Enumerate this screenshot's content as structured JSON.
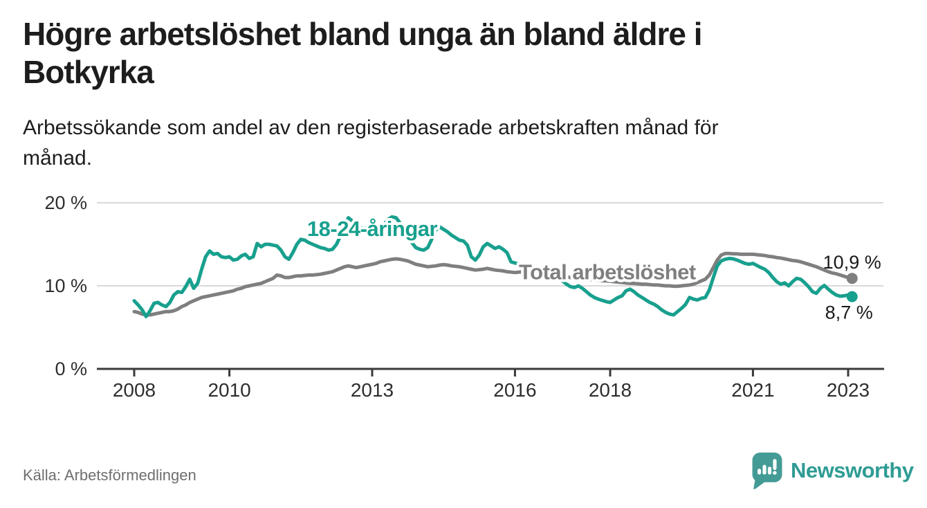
{
  "header": {
    "title_line1": "Högre arbetslöshet bland unga än bland äldre i",
    "title_line2": "Botkyrka",
    "subtitle_line1": "Arbetssökande som andel av den registerbaserade arbetskraften månad för",
    "subtitle_line2": "månad."
  },
  "footer": {
    "source": "Källa: Arbetsförmedlingen",
    "brand_name": "Newsworthy"
  },
  "colors": {
    "youth": "#18a08e",
    "total": "#7f7f7f",
    "grid": "#d9d9d9",
    "axis": "#3a3a3a",
    "axis_text": "#2e2e2e",
    "text": "#1a1a1a",
    "halo": "#ffffff",
    "brand_icon": "#449b95",
    "brand_text": "#2e9c94"
  },
  "chart_data": {
    "type": "line",
    "unit": "%",
    "x_start": 2008.0,
    "x_step_years": 0.0833333,
    "x_ticks": [
      2008,
      2010,
      2013,
      2016,
      2018,
      2021,
      2023
    ],
    "y_ticks": [
      {
        "value": 0,
        "label": "0 %"
      },
      {
        "value": 10,
        "label": "10 %"
      },
      {
        "value": 20,
        "label": "20 %"
      }
    ],
    "ylim": [
      0,
      21
    ],
    "grid": "horizontal-only",
    "legend": "inline-labels",
    "series": [
      {
        "name": "18-24-åringar",
        "color": "#18a08e",
        "label_anchor_year": 2013.0,
        "label_value": 16.0,
        "end_label": "8,7 %",
        "end_value": 8.7,
        "values": [
          8.2,
          7.7,
          7.1,
          6.3,
          7.0,
          7.9,
          8.0,
          7.7,
          7.5,
          8.0,
          8.9,
          9.3,
          9.2,
          9.9,
          10.8,
          9.7,
          10.3,
          12.0,
          13.5,
          14.2,
          13.8,
          13.9,
          13.5,
          13.4,
          13.5,
          13.1,
          13.2,
          13.6,
          13.8,
          13.3,
          13.5,
          15.1,
          14.7,
          15.0,
          15.0,
          14.9,
          14.8,
          14.3,
          13.5,
          13.2,
          14.0,
          15.0,
          15.6,
          15.5,
          15.2,
          15.0,
          14.8,
          14.6,
          14.5,
          14.3,
          14.4,
          15.0,
          16.0,
          17.3,
          18.2,
          17.8,
          17.3,
          17.0,
          16.9,
          17.1,
          16.8,
          16.5,
          16.9,
          17.4,
          18.0,
          18.3,
          18.2,
          17.6,
          16.8,
          16.0,
          15.2,
          14.6,
          14.4,
          14.3,
          14.6,
          15.6,
          16.7,
          17.1,
          16.8,
          16.5,
          16.1,
          15.8,
          15.5,
          15.4,
          14.9,
          13.5,
          13.1,
          13.7,
          14.7,
          15.1,
          14.8,
          14.5,
          14.7,
          14.4,
          14.0,
          12.9,
          12.75,
          12.6,
          12.4,
          12.25,
          12.1,
          12.0,
          11.8,
          11.6,
          11.4,
          11.2,
          11.0,
          10.8,
          10.6,
          10.2,
          9.9,
          9.8,
          10.0,
          9.7,
          9.3,
          8.9,
          8.6,
          8.4,
          8.25,
          8.1,
          8.0,
          8.3,
          8.6,
          8.8,
          9.4,
          9.6,
          9.3,
          8.9,
          8.6,
          8.3,
          8.0,
          7.8,
          7.5,
          7.1,
          6.8,
          6.6,
          6.5,
          6.9,
          7.3,
          7.75,
          8.6,
          8.4,
          8.3,
          8.5,
          8.6,
          9.5,
          11.0,
          12.4,
          13.0,
          13.2,
          13.3,
          13.25,
          13.1,
          12.9,
          12.7,
          12.6,
          12.7,
          12.45,
          12.2,
          12.0,
          11.6,
          11.0,
          10.5,
          10.2,
          10.35,
          10.0,
          10.5,
          10.9,
          10.8,
          10.4,
          9.9,
          9.3,
          9.1,
          9.7,
          10.05,
          9.6,
          9.2,
          8.9,
          8.75,
          8.8,
          8.9,
          8.7
        ]
      },
      {
        "name": "Total arbetslöshet",
        "color": "#7f7f7f",
        "label_anchor_year": 2017.94,
        "label_value": 10.8,
        "end_label": "10,9 %",
        "end_value": 10.9,
        "values": [
          6.9,
          6.8,
          6.6,
          6.5,
          6.5,
          6.6,
          6.7,
          6.8,
          6.9,
          6.9,
          7.0,
          7.2,
          7.5,
          7.7,
          8.0,
          8.2,
          8.4,
          8.6,
          8.7,
          8.8,
          8.9,
          9.0,
          9.1,
          9.2,
          9.3,
          9.4,
          9.6,
          9.7,
          9.9,
          10.0,
          10.1,
          10.2,
          10.3,
          10.5,
          10.7,
          10.9,
          11.3,
          11.2,
          11.0,
          11.0,
          11.1,
          11.2,
          11.2,
          11.25,
          11.3,
          11.3,
          11.35,
          11.4,
          11.5,
          11.6,
          11.7,
          11.9,
          12.1,
          12.3,
          12.4,
          12.3,
          12.2,
          12.3,
          12.4,
          12.5,
          12.6,
          12.7,
          12.9,
          13.0,
          13.1,
          13.2,
          13.25,
          13.2,
          13.1,
          13.0,
          12.8,
          12.6,
          12.5,
          12.4,
          12.3,
          12.35,
          12.4,
          12.5,
          12.55,
          12.5,
          12.4,
          12.35,
          12.3,
          12.2,
          12.1,
          12.0,
          11.9,
          11.95,
          12.0,
          12.1,
          12.0,
          11.9,
          11.85,
          11.8,
          11.7,
          11.65,
          11.6,
          11.65,
          11.7,
          11.75,
          11.7,
          11.6,
          11.5,
          11.45,
          11.4,
          11.3,
          11.25,
          11.2,
          11.15,
          11.1,
          11.0,
          10.95,
          10.9,
          10.85,
          10.8,
          10.75,
          10.7,
          10.65,
          10.6,
          10.6,
          10.55,
          10.5,
          10.45,
          10.4,
          10.35,
          10.3,
          10.3,
          10.25,
          10.2,
          10.2,
          10.15,
          10.1,
          10.1,
          10.05,
          10.0,
          10.0,
          9.95,
          9.95,
          10.0,
          10.05,
          10.1,
          10.2,
          10.4,
          10.6,
          10.8,
          11.3,
          12.2,
          13.1,
          13.7,
          13.9,
          13.9,
          13.85,
          13.85,
          13.8,
          13.8,
          13.8,
          13.8,
          13.75,
          13.7,
          13.65,
          13.55,
          13.5,
          13.4,
          13.35,
          13.25,
          13.15,
          13.05,
          13.0,
          12.9,
          12.75,
          12.6,
          12.45,
          12.3,
          12.1,
          11.9,
          11.7,
          11.55,
          11.45,
          11.3,
          11.15,
          11.0,
          10.9
        ]
      }
    ]
  }
}
